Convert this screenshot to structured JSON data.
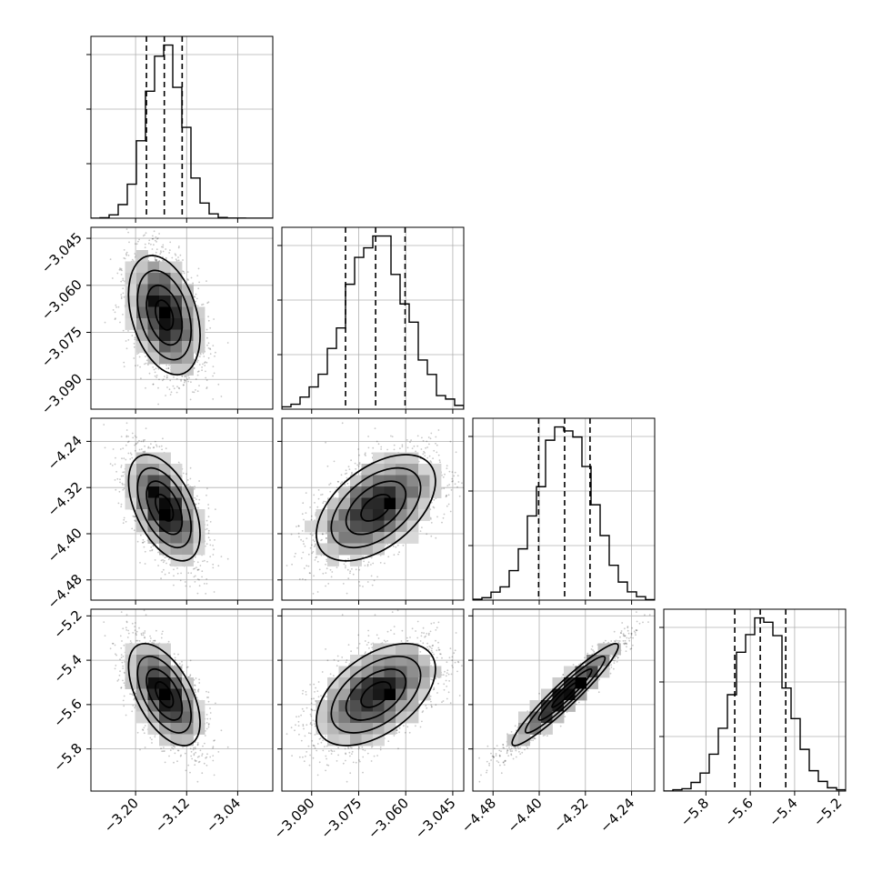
{
  "chart_data": {
    "type": "corner",
    "parameters": [
      {
        "mean": -3.155,
        "sd": 0.028,
        "q16": -3.183,
        "q50": -3.155,
        "q84": -3.127,
        "range": [
          -3.27,
          -2.985
        ],
        "ticks": [
          -3.2,
          -3.12,
          -3.04
        ],
        "tick_labels": [
          "−3.20",
          "−3.12",
          "−3.04"
        ]
      },
      {
        "mean": -3.0695,
        "sd": 0.0095,
        "q16": -3.0792,
        "q50": -3.0696,
        "q84": -3.0602,
        "range": [
          -3.0995,
          -3.0415
        ],
        "ticks": [
          -3.09,
          -3.075,
          -3.06,
          -3.045
        ],
        "tick_labels": [
          "−3.090",
          "−3.075",
          "−3.060",
          "−3.045"
        ]
      },
      {
        "mean": -4.355,
        "sd": 0.046,
        "q16": -4.401,
        "q50": -4.356,
        "q84": -4.312,
        "range": [
          -4.515,
          -4.2
        ],
        "ticks": [
          -4.48,
          -4.4,
          -4.32,
          -4.24
        ],
        "tick_labels": [
          "−4.48",
          "−4.40",
          "−4.32",
          "−4.24"
        ]
      },
      {
        "mean": -5.555,
        "sd": 0.115,
        "q16": -5.67,
        "q50": -5.555,
        "q84": -5.44,
        "range": [
          -5.99,
          -5.17
        ],
        "ticks": [
          -5.8,
          -5.6,
          -5.4,
          -5.2
        ],
        "tick_labels": [
          "−5.8",
          "−5.6",
          "−5.4",
          "−5.2"
        ]
      }
    ],
    "correlations": [
      [
        1,
        -0.35,
        -0.5,
        -0.55
      ],
      [
        -0.35,
        1,
        0.5,
        0.5
      ],
      [
        -0.5,
        0.5,
        1,
        0.95
      ],
      [
        -0.55,
        0.5,
        0.95,
        1
      ]
    ],
    "grid": true,
    "quantiles": [
      0.16,
      0.5,
      0.84
    ]
  }
}
